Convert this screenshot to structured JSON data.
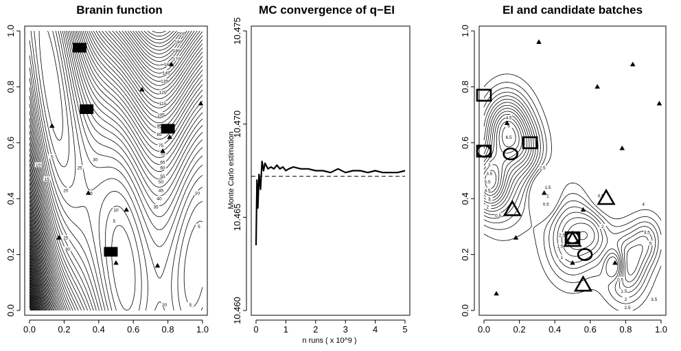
{
  "chart_data": [
    {
      "type": "contour",
      "title": "Branin function",
      "xlabel": "",
      "ylabel": "",
      "xlim": [
        0,
        1
      ],
      "ylim": [
        0,
        1
      ],
      "x_ticks": [
        "0.0",
        "0.2",
        "0.4",
        "0.6",
        "0.8",
        "1.0"
      ],
      "y_ticks": [
        "0.0",
        "0.2",
        "0.4",
        "0.6",
        "0.8",
        "1.0"
      ],
      "contour_labels": [
        {
          "x": 0.13,
          "y": 0.55,
          "text": "5"
        },
        {
          "x": 0.05,
          "y": 0.52,
          "text": "10"
        },
        {
          "x": 0.1,
          "y": 0.47,
          "text": "15"
        },
        {
          "x": 0.21,
          "y": 0.43,
          "text": "20"
        },
        {
          "x": 0.29,
          "y": 0.51,
          "text": "25"
        },
        {
          "x": 0.38,
          "y": 0.54,
          "text": "30"
        },
        {
          "x": 0.73,
          "y": 0.37,
          "text": "35"
        },
        {
          "x": 0.75,
          "y": 0.4,
          "text": "40"
        },
        {
          "x": 0.76,
          "y": 0.43,
          "text": "45"
        },
        {
          "x": 0.76,
          "y": 0.46,
          "text": "50"
        },
        {
          "x": 0.77,
          "y": 0.48,
          "text": "55"
        },
        {
          "x": 0.77,
          "y": 0.51,
          "text": "60"
        },
        {
          "x": 0.77,
          "y": 0.53,
          "text": "65"
        },
        {
          "x": 0.77,
          "y": 0.56,
          "text": "70"
        },
        {
          "x": 0.76,
          "y": 0.59,
          "text": "75"
        },
        {
          "x": 0.75,
          "y": 0.63,
          "text": "85"
        },
        {
          "x": 0.75,
          "y": 0.66,
          "text": "95"
        },
        {
          "x": 0.76,
          "y": 0.7,
          "text": "105"
        },
        {
          "x": 0.77,
          "y": 0.74,
          "text": "115"
        },
        {
          "x": 0.77,
          "y": 0.78,
          "text": "125"
        },
        {
          "x": 0.78,
          "y": 0.82,
          "text": "135"
        },
        {
          "x": 0.79,
          "y": 0.85,
          "text": "145"
        },
        {
          "x": 0.8,
          "y": 0.88,
          "text": "160"
        },
        {
          "x": 0.85,
          "y": 0.9,
          "text": "170"
        },
        {
          "x": 0.85,
          "y": 0.93,
          "text": "180"
        },
        {
          "x": 0.86,
          "y": 0.96,
          "text": "190"
        },
        {
          "x": 0.88,
          "y": 0.99,
          "text": "200"
        },
        {
          "x": 0.35,
          "y": 0.42,
          "text": "15"
        },
        {
          "x": 0.21,
          "y": 0.26,
          "text": "25"
        },
        {
          "x": 0.22,
          "y": 0.22,
          "text": "30"
        },
        {
          "x": 0.5,
          "y": 0.36,
          "text": "10"
        },
        {
          "x": 0.49,
          "y": 0.32,
          "text": "5"
        },
        {
          "x": 0.97,
          "y": 0.42,
          "text": "10"
        },
        {
          "x": 0.98,
          "y": 0.3,
          "text": "5"
        },
        {
          "x": 0.78,
          "y": 0.02,
          "text": "20"
        },
        {
          "x": 0.93,
          "y": 0.02,
          "text": "5"
        }
      ],
      "design_points": [
        [
          0.13,
          0.66
        ],
        [
          0.34,
          0.42
        ],
        [
          0.17,
          0.26
        ],
        [
          0.56,
          0.36
        ],
        [
          0.5,
          0.17
        ],
        [
          0.74,
          0.16
        ],
        [
          0.65,
          0.79
        ],
        [
          0.82,
          0.88
        ],
        [
          0.99,
          0.74
        ],
        [
          0.77,
          0.57
        ],
        [
          0.81,
          0.62
        ]
      ],
      "batch_points": [
        [
          0.29,
          0.94
        ],
        [
          0.33,
          0.72
        ],
        [
          0.8,
          0.65
        ],
        [
          0.47,
          0.21
        ]
      ]
    },
    {
      "type": "line",
      "title": "MC convergence of q−EI",
      "xlabel": "n runs ( x 10^9 )",
      "ylabel": "Monte Carlo estimation",
      "xlim": [
        0,
        5
      ],
      "ylim": [
        10.46,
        10.475
      ],
      "x_ticks": [
        "0",
        "1",
        "2",
        "3",
        "4",
        "5"
      ],
      "y_ticks": [
        "10.460",
        "10.465",
        "10.470",
        "10.475"
      ],
      "reference_line": 10.4672,
      "series": [
        {
          "x": [
            0.0,
            0.03,
            0.06,
            0.1,
            0.15,
            0.2,
            0.25,
            0.3,
            0.4,
            0.5,
            0.6,
            0.7,
            0.8,
            0.9,
            1.0,
            1.1,
            1.25,
            1.5,
            1.75,
            2.0,
            2.25,
            2.5,
            2.75,
            3.0,
            3.25,
            3.5,
            3.75,
            4.0,
            4.25,
            4.5,
            4.75,
            5.0
          ],
          "y": [
            10.4635,
            10.467,
            10.4655,
            10.4673,
            10.4665,
            10.468,
            10.4675,
            10.4679,
            10.4676,
            10.4677,
            10.4676,
            10.4678,
            10.4676,
            10.4677,
            10.4675,
            10.4676,
            10.4677,
            10.4676,
            10.4676,
            10.4675,
            10.4675,
            10.4674,
            10.4676,
            10.4674,
            10.4675,
            10.4675,
            10.4674,
            10.4675,
            10.4674,
            10.4674,
            10.4674,
            10.4675
          ]
        }
      ]
    },
    {
      "type": "contour",
      "title": "EI and candidate batches",
      "xlabel": "",
      "ylabel": "",
      "xlim": [
        0,
        1
      ],
      "ylim": [
        0,
        1
      ],
      "x_ticks": [
        "0.0",
        "0.2",
        "0.4",
        "0.6",
        "0.8",
        "1.0"
      ],
      "y_ticks": [
        "0.0",
        "0.2",
        "0.4",
        "0.6",
        "0.8",
        "1.0"
      ],
      "contour_labels": [
        {
          "x": 0.14,
          "y": 0.69,
          "text": "4.5"
        },
        {
          "x": 0.14,
          "y": 0.66,
          "text": "6"
        },
        {
          "x": 0.14,
          "y": 0.62,
          "text": "6.5"
        },
        {
          "x": 0.03,
          "y": 0.52,
          "text": "3"
        },
        {
          "x": 0.03,
          "y": 0.49,
          "text": "3.5"
        },
        {
          "x": 0.02,
          "y": 0.46,
          "text": "5.5"
        },
        {
          "x": 0.02,
          "y": 0.43,
          "text": "4.5"
        },
        {
          "x": 0.03,
          "y": 0.4,
          "text": "3"
        },
        {
          "x": 0.02,
          "y": 0.37,
          "text": "2"
        },
        {
          "x": 0.08,
          "y": 0.34,
          "text": "0.5"
        },
        {
          "x": 0.33,
          "y": 0.51,
          "text": "2.5"
        },
        {
          "x": 0.36,
          "y": 0.44,
          "text": "1.5"
        },
        {
          "x": 0.36,
          "y": 0.41,
          "text": "1"
        },
        {
          "x": 0.35,
          "y": 0.38,
          "text": "0.5"
        },
        {
          "x": 0.66,
          "y": 0.41,
          "text": "0.5"
        },
        {
          "x": 0.67,
          "y": 0.3,
          "text": "2"
        },
        {
          "x": 0.9,
          "y": 0.38,
          "text": "4"
        },
        {
          "x": 0.92,
          "y": 0.28,
          "text": "3.5"
        },
        {
          "x": 0.94,
          "y": 0.24,
          "text": "5"
        },
        {
          "x": 0.77,
          "y": 0.11,
          "text": "0.5"
        },
        {
          "x": 0.79,
          "y": 0.07,
          "text": "1.5"
        },
        {
          "x": 0.8,
          "y": 0.04,
          "text": "2"
        },
        {
          "x": 0.81,
          "y": 0.01,
          "text": "2.5"
        },
        {
          "x": 0.96,
          "y": 0.04,
          "text": "3.5"
        },
        {
          "x": 0.44,
          "y": 0.19,
          "text": "1"
        },
        {
          "x": 0.43,
          "y": 0.23,
          "text": "1.5"
        },
        {
          "x": 0.44,
          "y": 0.27,
          "text": "2.5"
        }
      ],
      "design_points": [
        [
          0.31,
          0.96
        ],
        [
          0.84,
          0.88
        ],
        [
          0.64,
          0.8
        ],
        [
          0.99,
          0.74
        ],
        [
          0.78,
          0.58
        ],
        [
          0.13,
          0.67
        ],
        [
          0.34,
          0.42
        ],
        [
          0.56,
          0.36
        ],
        [
          0.18,
          0.26
        ],
        [
          0.5,
          0.17
        ],
        [
          0.74,
          0.17
        ],
        [
          0.07,
          0.06
        ]
      ],
      "batch_squares": [
        [
          0.0,
          0.77
        ],
        [
          0.26,
          0.6
        ],
        [
          0.0,
          0.57
        ],
        [
          0.5,
          0.26
        ]
      ],
      "batch_circles": [
        [
          0.0,
          0.57
        ],
        [
          0.15,
          0.56
        ],
        [
          0.5,
          0.26
        ],
        [
          0.57,
          0.2
        ]
      ],
      "batch_triangles": [
        [
          0.16,
          0.36
        ],
        [
          0.69,
          0.4
        ],
        [
          0.56,
          0.09
        ],
        [
          0.5,
          0.25
        ]
      ]
    }
  ]
}
